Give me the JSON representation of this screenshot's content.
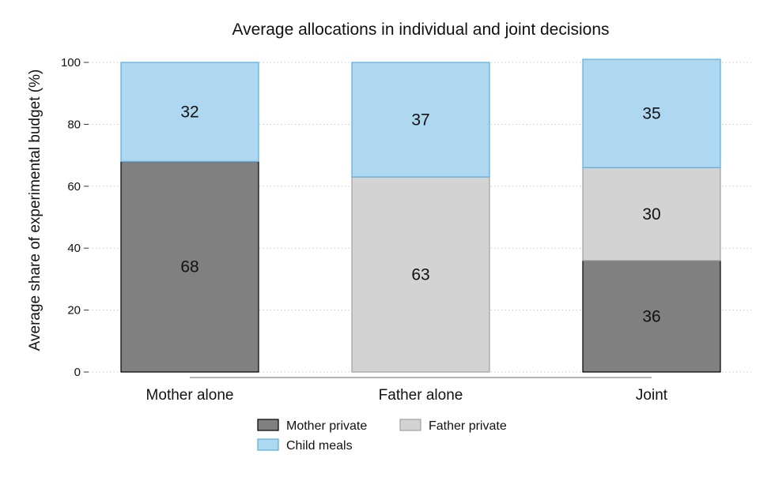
{
  "chart_data": {
    "type": "bar",
    "stacked": true,
    "title": "Average allocations in individual and joint decisions",
    "ylabel": "Average share of experimental budget (%)",
    "xlabel": "",
    "ylim": [
      0,
      100
    ],
    "yticks": [
      0,
      20,
      40,
      60,
      80,
      100
    ],
    "grid": "horizontal-dotted",
    "legend_position": "bottom",
    "categories": [
      "Mother alone",
      "Father alone",
      "Joint"
    ],
    "series": [
      {
        "name": "Mother private",
        "color": "#808080",
        "edge": "#000000",
        "values": [
          68,
          0,
          36
        ],
        "labels": [
          "68",
          "",
          "36"
        ]
      },
      {
        "name": "Father private",
        "color": "#d3d3d3",
        "edge": "#a0a0a0",
        "values": [
          0,
          63,
          30
        ],
        "labels": [
          "",
          "63",
          "30"
        ]
      },
      {
        "name": "Child meals",
        "color": "#add8f0",
        "edge": "#5aaee0",
        "values": [
          32,
          37,
          35
        ],
        "labels": [
          "32",
          "37",
          "35"
        ]
      }
    ]
  }
}
